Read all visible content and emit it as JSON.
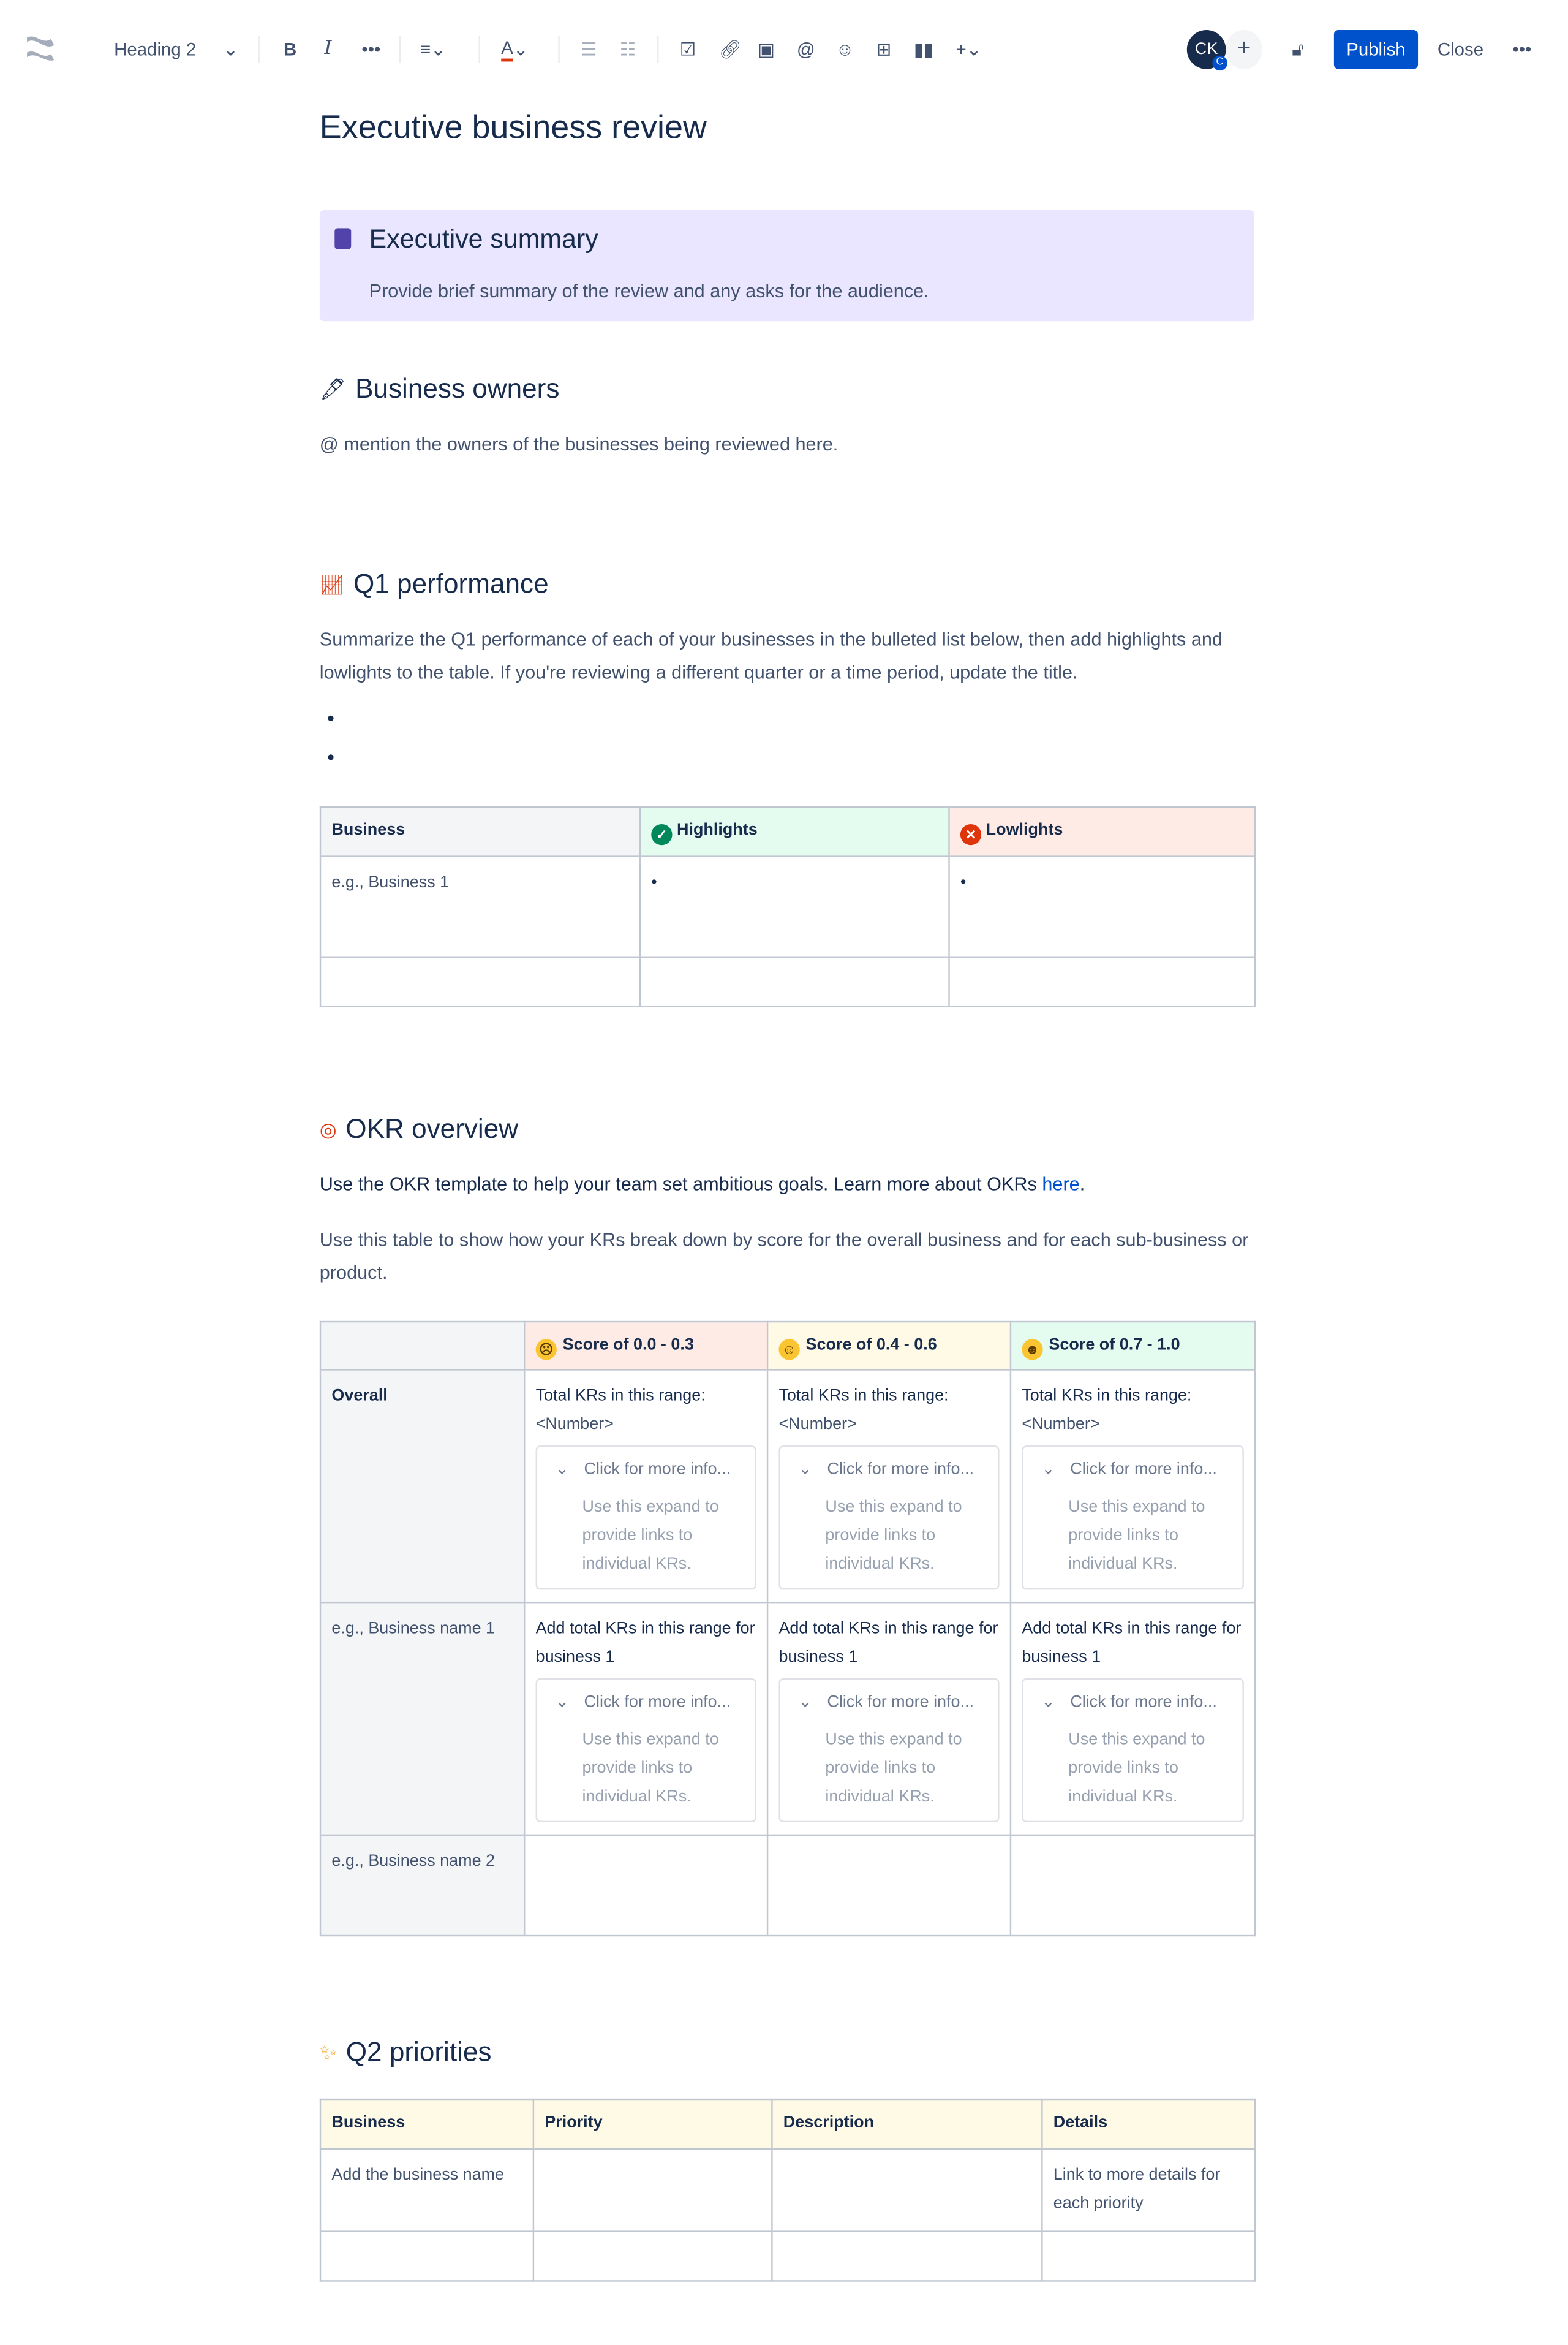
{
  "toolbar": {
    "text_style": "Heading 2",
    "avatar_initials": "CK",
    "avatar_badge": "C",
    "publish": "Publish",
    "close": "Close",
    "colors": {
      "publish_bg": "#0052cc",
      "avatar_bg": "#172b4d"
    }
  },
  "page": {
    "title": "Executive business review"
  },
  "summary": {
    "heading": "Executive summary",
    "text": "Provide brief summary of the review and any asks for the audience.",
    "bg": "#eae6ff"
  },
  "owners": {
    "heading": "Business owners",
    "icon": "pen-icon",
    "text": "@ mention the owners of the businesses being reviewed here."
  },
  "q1": {
    "heading": "Q1 performance",
    "icon": "chart-increasing-icon",
    "text": "Summarize the Q1 performance of each of your businesses in the bulleted list below, then add highlights and lowlights to the table. If you're reviewing a different quarter or a time period, update the title.",
    "table": {
      "headers": [
        "Business",
        "Highlights",
        "Lowlights"
      ],
      "row1": "e.g., Business 1"
    }
  },
  "okr": {
    "heading": "OKR overview",
    "icon": "target-icon",
    "text1": "Use the OKR template to help your team set ambitious goals. Learn more about OKRs ",
    "link": "here",
    "text1_end": ".",
    "text2": "Use this table to show how your KRs break down by score for the overall business and for each sub-business or product.",
    "headers": [
      "Score of 0.0 - 0.3",
      "Score of 0.4 - 0.6",
      "Score of 0.7 - 1.0"
    ],
    "rows": [
      "Overall",
      "e.g., Business name 1",
      "e.g., Business name 2"
    ],
    "total_label": "Total KRs in this range:",
    "number": "<Number>",
    "add_total": "Add total KRs in this range for business 1",
    "expand_title": "Click for more info...",
    "expand_body": "Use this expand to provide links to individual KRs."
  },
  "q2": {
    "heading": "Q2 priorities",
    "icon": "sparkles-icon",
    "headers": [
      "Business",
      "Priority",
      "Description",
      "Details"
    ],
    "row1": {
      "business": "Add the business name",
      "details": "Link to more details for each priority"
    }
  }
}
